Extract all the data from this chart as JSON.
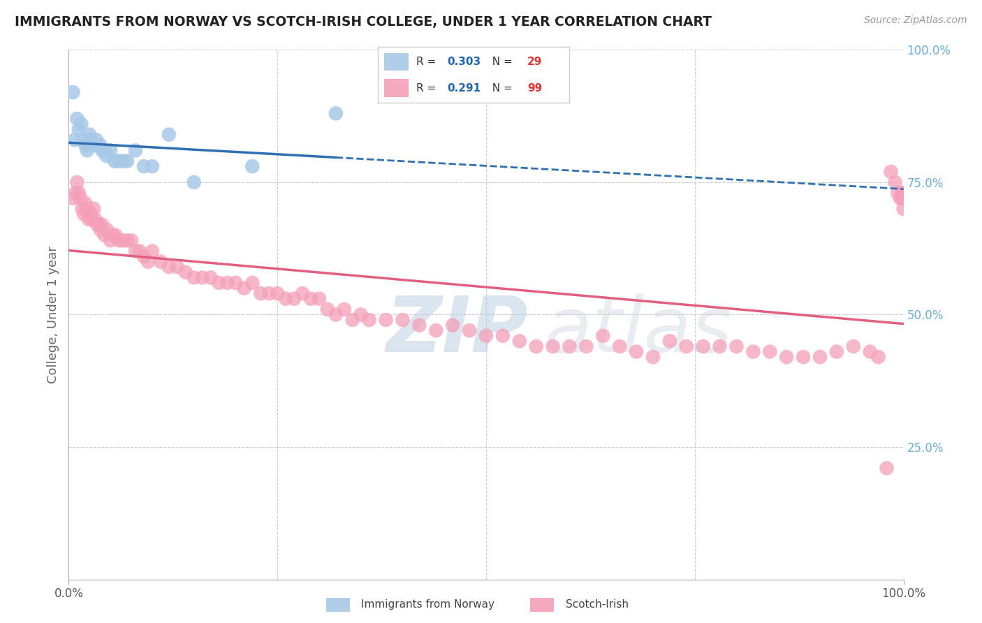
{
  "title": "IMMIGRANTS FROM NORWAY VS SCOTCH-IRISH COLLEGE, UNDER 1 YEAR CORRELATION CHART",
  "source": "Source: ZipAtlas.com",
  "ylabel": "College, Under 1 year",
  "xlim": [
    0.0,
    1.0
  ],
  "ylim": [
    0.0,
    1.0
  ],
  "norway_R": 0.303,
  "norway_N": 29,
  "scotch_R": 0.291,
  "scotch_N": 99,
  "norway_color": "#a8c8e8",
  "scotch_color": "#f4a0b8",
  "norway_line_color": "#3070b0",
  "scotch_line_color": "#e06080",
  "background_color": "#ffffff",
  "norway_x": [
    0.005,
    0.007,
    0.01,
    0.012,
    0.015,
    0.018,
    0.02,
    0.022,
    0.025,
    0.027,
    0.03,
    0.033,
    0.035,
    0.038,
    0.04,
    0.043,
    0.045,
    0.05,
    0.055,
    0.06,
    0.065,
    0.07,
    0.08,
    0.09,
    0.1,
    0.12,
    0.15,
    0.22,
    0.32
  ],
  "norway_y": [
    0.92,
    0.83,
    0.87,
    0.85,
    0.86,
    0.83,
    0.82,
    0.81,
    0.84,
    0.83,
    0.82,
    0.83,
    0.82,
    0.82,
    0.81,
    0.81,
    0.8,
    0.81,
    0.79,
    0.79,
    0.79,
    0.79,
    0.81,
    0.78,
    0.78,
    0.84,
    0.75,
    0.78,
    0.88
  ],
  "scotch_x": [
    0.005,
    0.008,
    0.01,
    0.012,
    0.014,
    0.016,
    0.018,
    0.02,
    0.022,
    0.024,
    0.026,
    0.028,
    0.03,
    0.032,
    0.034,
    0.036,
    0.038,
    0.04,
    0.043,
    0.046,
    0.05,
    0.053,
    0.056,
    0.06,
    0.065,
    0.07,
    0.075,
    0.08,
    0.085,
    0.09,
    0.095,
    0.1,
    0.11,
    0.12,
    0.13,
    0.14,
    0.15,
    0.16,
    0.17,
    0.18,
    0.19,
    0.2,
    0.21,
    0.22,
    0.23,
    0.24,
    0.25,
    0.26,
    0.27,
    0.28,
    0.29,
    0.3,
    0.31,
    0.32,
    0.33,
    0.34,
    0.35,
    0.36,
    0.38,
    0.4,
    0.42,
    0.44,
    0.46,
    0.48,
    0.5,
    0.52,
    0.54,
    0.56,
    0.58,
    0.6,
    0.62,
    0.64,
    0.66,
    0.68,
    0.7,
    0.72,
    0.74,
    0.76,
    0.78,
    0.8,
    0.82,
    0.84,
    0.86,
    0.88,
    0.9,
    0.92,
    0.94,
    0.96,
    0.97,
    0.98,
    0.985,
    0.99,
    0.993,
    0.996,
    0.998,
    0.999,
    1.0,
    1.0,
    1.0
  ],
  "scotch_y": [
    0.72,
    0.73,
    0.75,
    0.73,
    0.72,
    0.7,
    0.69,
    0.71,
    0.7,
    0.68,
    0.69,
    0.68,
    0.7,
    0.68,
    0.67,
    0.67,
    0.66,
    0.67,
    0.65,
    0.66,
    0.64,
    0.65,
    0.65,
    0.64,
    0.64,
    0.64,
    0.64,
    0.62,
    0.62,
    0.61,
    0.6,
    0.62,
    0.6,
    0.59,
    0.59,
    0.58,
    0.57,
    0.57,
    0.57,
    0.56,
    0.56,
    0.56,
    0.55,
    0.56,
    0.54,
    0.54,
    0.54,
    0.53,
    0.53,
    0.54,
    0.53,
    0.53,
    0.51,
    0.5,
    0.51,
    0.49,
    0.5,
    0.49,
    0.49,
    0.49,
    0.48,
    0.47,
    0.48,
    0.47,
    0.46,
    0.46,
    0.45,
    0.44,
    0.44,
    0.44,
    0.44,
    0.46,
    0.44,
    0.43,
    0.42,
    0.45,
    0.44,
    0.44,
    0.44,
    0.44,
    0.43,
    0.43,
    0.42,
    0.42,
    0.42,
    0.43,
    0.44,
    0.43,
    0.42,
    0.21,
    0.77,
    0.75,
    0.73,
    0.72,
    0.72,
    0.73,
    0.73,
    0.72,
    0.7
  ]
}
